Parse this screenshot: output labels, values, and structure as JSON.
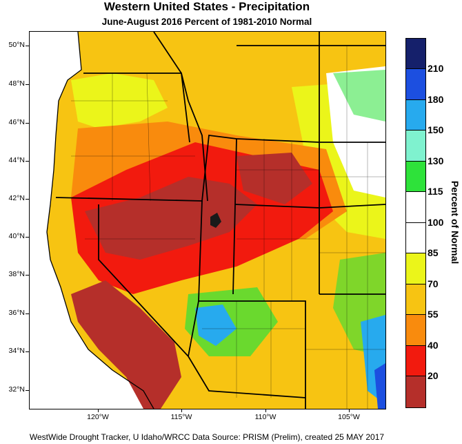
{
  "title": "Western United States - Precipitation",
  "subtitle": "June-August 2016  Percent of 1981-2010 Normal",
  "footer": "WestWide Drought Tracker, U Idaho/WRCC Data Source: PRISM (Prelim), created 25 MAY 2017",
  "legend": {
    "title": "Percent of Normal",
    "labels": [
      "210",
      "180",
      "150",
      "130",
      "115",
      "100",
      "85",
      "70",
      "55",
      "40",
      "20"
    ],
    "colors": [
      "#15206b",
      "#1c4fe0",
      "#27aaee",
      "#7ff2cf",
      "#2ee23a",
      "#ffffff",
      "#ffffff",
      "#ebf51a",
      "#f7c412",
      "#f98b0d",
      "#f21a0e",
      "#b52f2a"
    ]
  },
  "axes": {
    "lat_labels": [
      "50°N",
      "48°N",
      "46°N",
      "44°N",
      "42°N",
      "40°N",
      "38°N",
      "36°N",
      "34°N",
      "32°N"
    ],
    "lon_labels": [
      "120°W",
      "115°W",
      "110°W",
      "105°W"
    ]
  }
}
